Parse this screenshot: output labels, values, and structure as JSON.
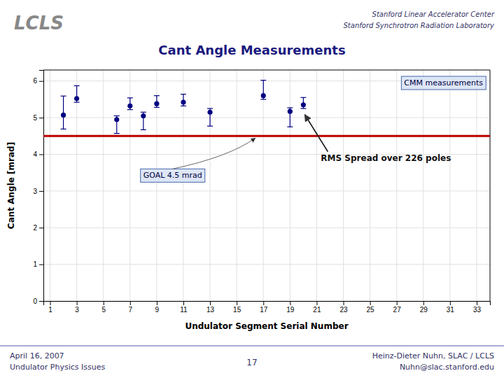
{
  "chart_data": {
    "type": "scatter",
    "title": "Cant Angle Measurements",
    "xlabel": "Undulator Segment Serial Number",
    "ylabel": "Cant Angle [mrad]",
    "x": [
      2,
      3,
      6,
      7,
      8,
      9,
      11,
      13,
      17,
      19,
      20
    ],
    "values": [
      5.07,
      5.52,
      4.95,
      5.32,
      5.05,
      5.38,
      5.42,
      5.15,
      5.6,
      5.17,
      5.35
    ],
    "yerr_low": [
      0.38,
      0.1,
      0.38,
      0.1,
      0.38,
      0.1,
      0.1,
      0.38,
      0.1,
      0.42,
      0.1
    ],
    "yerr_high": [
      0.52,
      0.35,
      0.1,
      0.22,
      0.1,
      0.22,
      0.22,
      0.1,
      0.42,
      0.1,
      0.2
    ],
    "color": "#000080",
    "marker": "circle",
    "xlim": [
      0.5,
      34
    ],
    "ylim": [
      0,
      6.3
    ],
    "xticks": [
      1,
      3,
      5,
      7,
      9,
      11,
      13,
      15,
      17,
      19,
      21,
      23,
      25,
      27,
      29,
      31,
      33
    ],
    "yticks": [
      0,
      1,
      2,
      3,
      4,
      5,
      6
    ],
    "grid": true,
    "reference_line": {
      "value": 4.5,
      "color": "#bb0000"
    },
    "annotations": [
      {
        "text": "CMM measurements"
      },
      {
        "text": "GOAL  4.5 mrad",
        "x": 16.5,
        "y": 4.5
      },
      {
        "text": "RMS Spread over 226 poles",
        "x": 20,
        "y": 5.35
      }
    ]
  },
  "page": {
    "logo": "LCLS",
    "header_lines": [
      "Stanford Linear Accelerator Center",
      "Stanford Synchrotron Radiation Laboratory"
    ],
    "footer_left": [
      "April 16, 2007",
      "Undulator Physics Issues"
    ],
    "page_number": "17",
    "footer_right": [
      "Heinz-Dieter Nuhn, SLAC / LCLS",
      "Nuhn@slac.stanford.edu"
    ]
  }
}
